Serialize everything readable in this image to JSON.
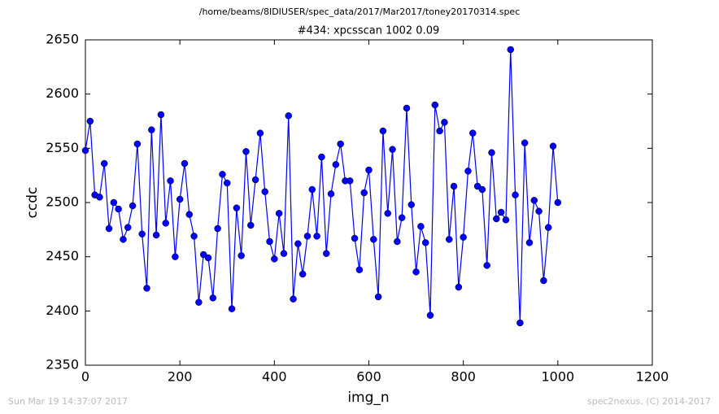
{
  "chart_data": {
    "type": "line",
    "suptitle": "/home/beams/8IDIUSER/spec_data/2017/Mar2017/toney20170314.spec",
    "title": "#434: xpcsscan 1002 0.09",
    "x_label": "img_n",
    "y_label": "ccdc",
    "footer_left": "Sun Mar 19 14:37:07 2017",
    "footer_right": "spec2nexus, (C) 2014-2017",
    "x": [
      0,
      10,
      20,
      30,
      40,
      50,
      60,
      70,
      80,
      90,
      100,
      110,
      120,
      130,
      140,
      150,
      160,
      170,
      180,
      190,
      200,
      210,
      220,
      230,
      240,
      250,
      260,
      270,
      280,
      290,
      300,
      310,
      320,
      330,
      340,
      350,
      360,
      370,
      380,
      390,
      400,
      410,
      420,
      430,
      440,
      450,
      460,
      470,
      480,
      490,
      500,
      510,
      520,
      530,
      540,
      550,
      560,
      570,
      580,
      590,
      600,
      610,
      620,
      630,
      640,
      650,
      660,
      670,
      680,
      690,
      700,
      710,
      720,
      730,
      740,
      750,
      760,
      770,
      780,
      790,
      800,
      810,
      820,
      830,
      840,
      850,
      860,
      870,
      880,
      890,
      900,
      910,
      920,
      930,
      940,
      950,
      960,
      970,
      980,
      990,
      1000
    ],
    "series": [
      {
        "name": "ccdc",
        "color": "#0000ff",
        "values": [
          2548,
          2575,
          2507,
          2505,
          2536,
          2476,
          2500,
          2494,
          2466,
          2477,
          2497,
          2554,
          2471,
          2421,
          2567,
          2470,
          2581,
          2481,
          2520,
          2450,
          2503,
          2536,
          2489,
          2469,
          2408,
          2452,
          2449,
          2412,
          2476,
          2526,
          2518,
          2402,
          2495,
          2451,
          2547,
          2479,
          2521,
          2564,
          2510,
          2464,
          2448,
          2490,
          2453,
          2580,
          2411,
          2462,
          2434,
          2469,
          2512,
          2469,
          2542,
          2453,
          2508,
          2535,
          2554,
          2520,
          2520,
          2467,
          2438,
          2509,
          2530,
          2466,
          2413,
          2566,
          2490,
          2549,
          2464,
          2486,
          2587,
          2498,
          2436,
          2478,
          2463,
          2396,
          2590,
          2566,
          2574,
          2466,
          2515,
          2422,
          2468,
          2529,
          2564,
          2515,
          2512,
          2442,
          2546,
          2485,
          2491,
          2484,
          2641,
          2507,
          2389,
          2555,
          2463,
          2502,
          2492,
          2428,
          2477,
          2552,
          2500
        ]
      }
    ],
    "xlim": [
      0,
      1200
    ],
    "xticks": [
      0,
      200,
      400,
      600,
      800,
      1000,
      1200
    ],
    "ylim": [
      2350,
      2650
    ],
    "yticks": [
      2350,
      2400,
      2450,
      2500,
      2550,
      2600,
      2650
    ],
    "grid": false
  }
}
